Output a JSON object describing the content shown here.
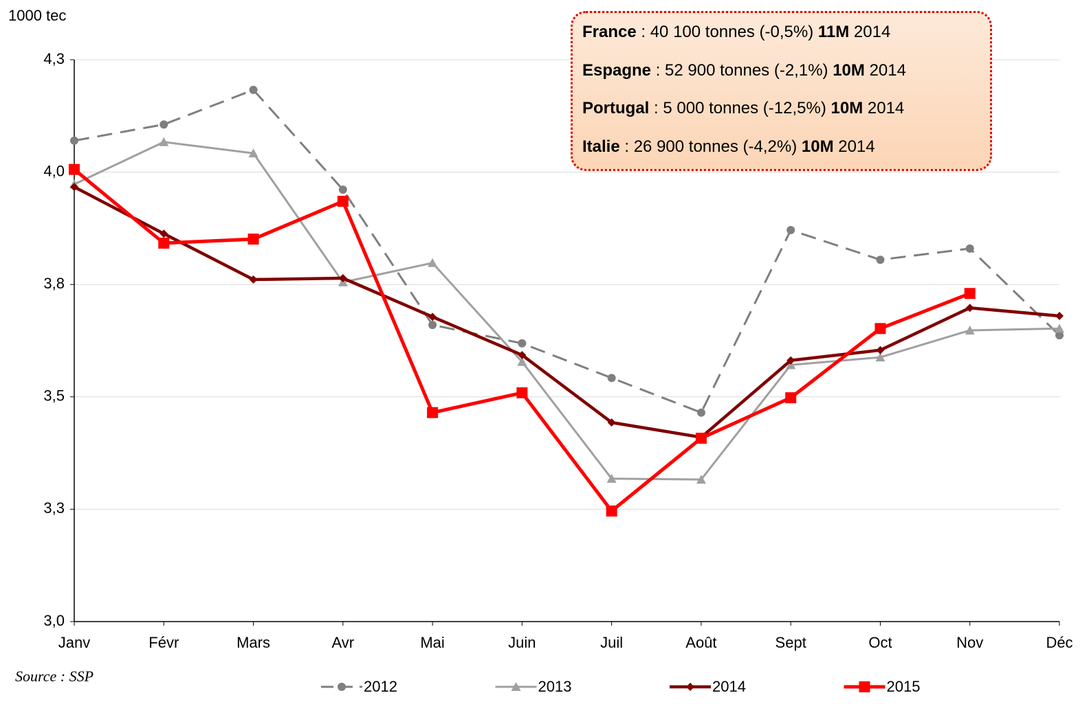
{
  "chart_data": {
    "type": "line",
    "y_label": "1000 tec",
    "source": "Source : SSP",
    "categories": [
      "Janv",
      "Févr",
      "Mars",
      "Avr",
      "Mai",
      "Juin",
      "Juil",
      "Août",
      "Sept",
      "Oct",
      "Nov",
      "Déc"
    ],
    "ylim": [
      3.0,
      4.25
    ],
    "yticks": [
      {
        "value": 3.0,
        "label": "3,0"
      },
      {
        "value": 3.25,
        "label": "3,3"
      },
      {
        "value": 3.5,
        "label": "3,5"
      },
      {
        "value": 3.75,
        "label": "3,8"
      },
      {
        "value": 4.0,
        "label": "4,0"
      },
      {
        "value": 4.25,
        "label": "4,3"
      }
    ],
    "grid": true,
    "legend": "bottom",
    "series": [
      {
        "name": "2012",
        "color": "#7f7f7f",
        "marker": "circle",
        "dash": true,
        "width": 3,
        "values": [
          4.07,
          4.106,
          4.183,
          3.961,
          3.66,
          3.619,
          3.542,
          3.465,
          3.871,
          3.805,
          3.83,
          3.637
        ]
      },
      {
        "name": "2013",
        "color": "#a0a0a0",
        "marker": "triangle",
        "dash": false,
        "width": 3,
        "values": [
          3.973,
          4.067,
          4.042,
          3.755,
          3.798,
          3.578,
          3.318,
          3.316,
          3.571,
          3.588,
          3.648,
          3.652
        ]
      },
      {
        "name": "2014",
        "color": "#800000",
        "marker": "diamond",
        "dash": false,
        "width": 4.5,
        "values": [
          3.967,
          3.863,
          3.761,
          3.764,
          3.678,
          3.593,
          3.443,
          3.41,
          3.581,
          3.604,
          3.698,
          3.68
        ]
      },
      {
        "name": "2015",
        "color": "#ff0000",
        "marker": "square",
        "dash": false,
        "width": 5,
        "values": [
          4.006,
          3.842,
          3.851,
          3.935,
          3.465,
          3.509,
          3.246,
          3.408,
          3.498,
          3.652,
          3.73,
          null
        ]
      }
    ],
    "annotations": [
      {
        "country": "France",
        "text": ": 40 100 tonnes (-0,5%)",
        "period": "11M",
        "year": "2014"
      },
      {
        "country": "Espagne",
        "text": ": 52 900 tonnes (-2,1%)",
        "period": "10M",
        "year": "2014"
      },
      {
        "country": "Portugal",
        "text": ": 5 000 tonnes (-12,5%)",
        "period": "10M",
        "year": "2014"
      },
      {
        "country": "Italie",
        "text": ": 26 900 tonnes (-4,2%)",
        "period": "10M",
        "year": "2014"
      }
    ]
  }
}
